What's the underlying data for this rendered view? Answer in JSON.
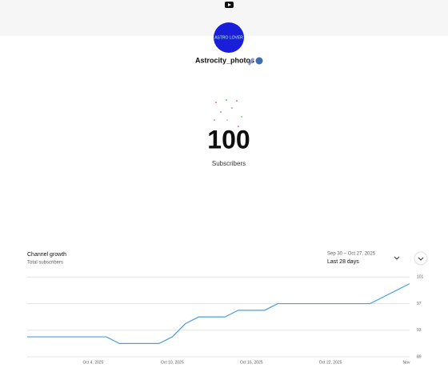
{
  "header": {
    "channel_name": "Astrocity_photos",
    "avatar_text": "ASTRO LOVER"
  },
  "milestone": {
    "count": "100",
    "label": "Subscribers"
  },
  "chart_data": {
    "type": "line",
    "title": "Channel growth",
    "subtitle": "Total subscribers",
    "date_range": "Sep 30 – Oct 27, 2025",
    "period": "Last 28 days",
    "categories": [
      null,
      null,
      null,
      null,
      null,
      "Oct 4, 2025",
      null,
      null,
      null,
      null,
      null,
      "Oct 10, 2025",
      null,
      null,
      null,
      null,
      null,
      "Oct 16, 2025",
      null,
      null,
      null,
      null,
      null,
      "Oct 22, 2025",
      null,
      null,
      null,
      null,
      null,
      "Nov"
    ],
    "series": [
      {
        "name": "Subscribers",
        "color": "#4aa0d8",
        "values": [
          92,
          92,
          92,
          92,
          92,
          92,
          92,
          91,
          91,
          91,
          91,
          92,
          94,
          95,
          95,
          95,
          96,
          96,
          96,
          97,
          97,
          97,
          97,
          97,
          97,
          97,
          97,
          98,
          99,
          100
        ]
      }
    ],
    "ylim": [
      89,
      102
    ],
    "yticks": [
      89,
      93,
      97,
      101
    ],
    "grid": true
  }
}
